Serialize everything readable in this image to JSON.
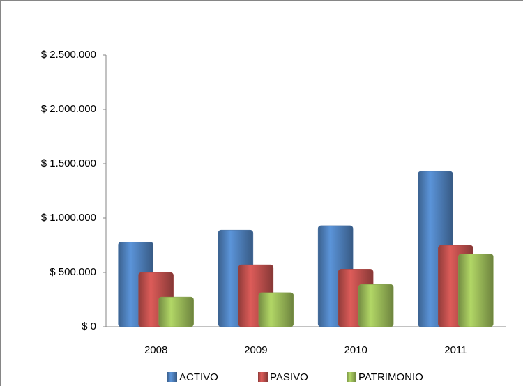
{
  "chart_data": {
    "type": "bar",
    "categories": [
      "2008",
      "2009",
      "2010",
      "2011"
    ],
    "series": [
      {
        "name": "ACTIVO",
        "color": "#4f81bd",
        "values": [
          780000,
          890000,
          930000,
          1430000
        ]
      },
      {
        "name": "PASIVO",
        "color": "#c0504d",
        "values": [
          500000,
          570000,
          530000,
          750000
        ]
      },
      {
        "name": "PATRIMONIO",
        "color": "#9bbb59",
        "values": [
          275000,
          315000,
          390000,
          670000
        ]
      }
    ],
    "ylim": [
      0,
      2500000
    ],
    "yticks": [
      {
        "value": 0,
        "label": "$ 0"
      },
      {
        "value": 500000,
        "label": "$ 500.000"
      },
      {
        "value": 1000000,
        "label": "$ 1.000.000"
      },
      {
        "value": 1500000,
        "label": "$ 1.500.000"
      },
      {
        "value": 2000000,
        "label": "$ 2.000.000"
      },
      {
        "value": 2500000,
        "label": "$ 2.500.000"
      }
    ],
    "grid": false,
    "legend": "bottom"
  }
}
